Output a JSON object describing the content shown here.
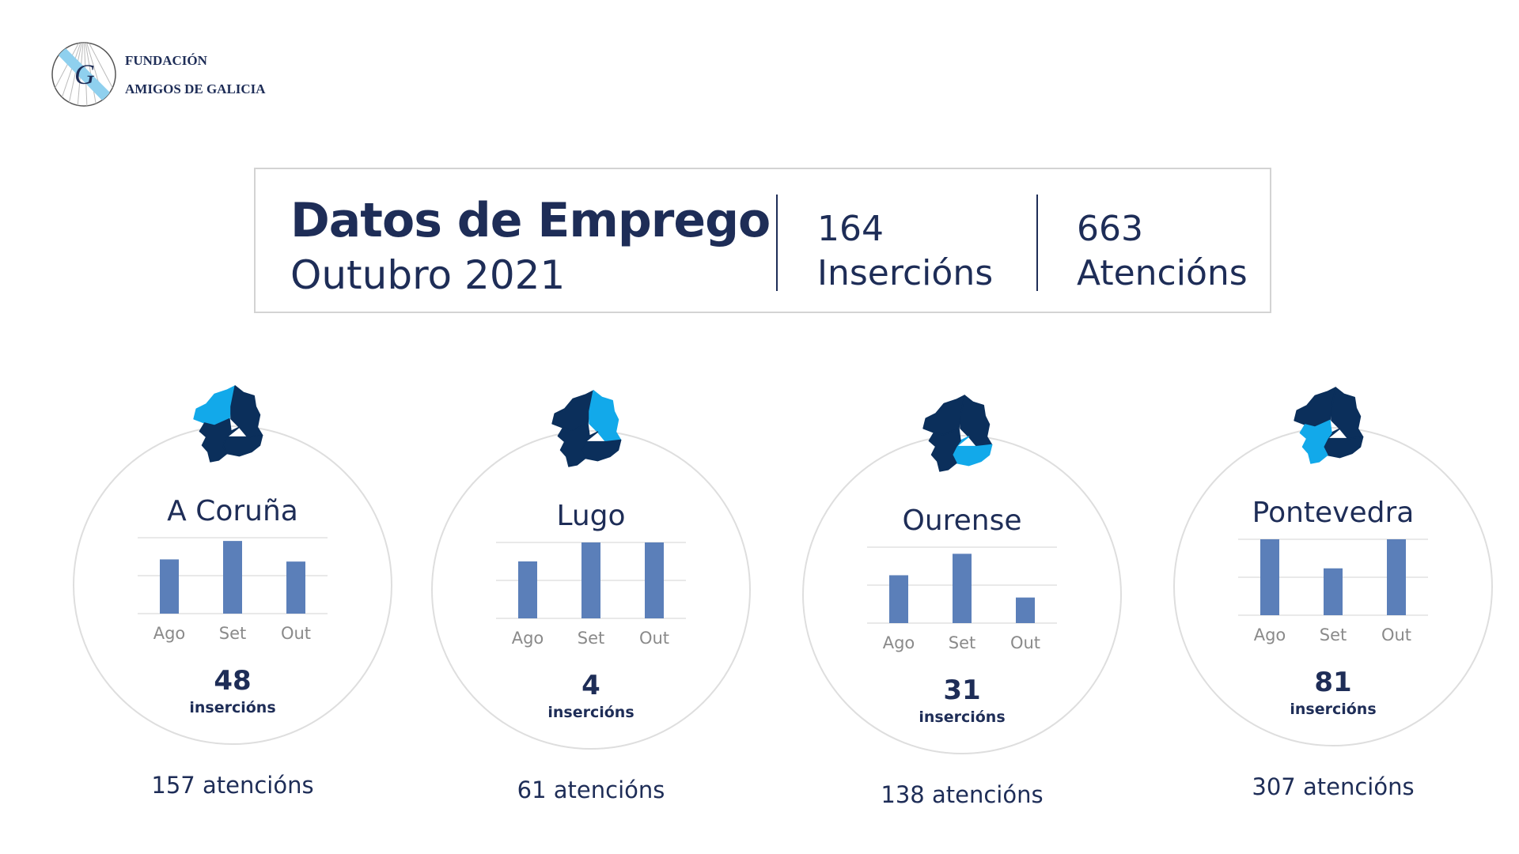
{
  "logo": {
    "line1": "FUNDACIÓN",
    "line2": "AMIGOS DE GALICIA",
    "letter": "G"
  },
  "header": {
    "title": "Datos de Emprego",
    "subtitle": "Outubro 2021",
    "insercions_value": "164",
    "insercions_label": "Insercións",
    "atencions_value": "663",
    "atencions_label": "Atencións"
  },
  "colors": {
    "text": "#1e2d57",
    "bar": "#5b7fb9",
    "map_dark": "#0b2f5b",
    "map_highlight": "#12a9ea",
    "grid": "#e2e2e2",
    "tick": "#8a8a8a"
  },
  "regions": [
    {
      "name": "A Coruña",
      "insercions": "48",
      "insercions_label": "insercións",
      "atencions": "157 atencións",
      "highlight": "coruna"
    },
    {
      "name": "Lugo",
      "insercions": "4",
      "insercions_label": "insercións",
      "atencions": "61 atencións",
      "highlight": "lugo"
    },
    {
      "name": "Ourense",
      "insercions": "31",
      "insercions_label": "insercións",
      "atencions": "138 atencións",
      "highlight": "ourense"
    },
    {
      "name": "Pontevedra",
      "insercions": "81",
      "insercions_label": "insercións",
      "atencions": "307 atencións",
      "highlight": "pontevedra"
    }
  ],
  "chart_data": [
    {
      "type": "bar",
      "title": "A Coruña",
      "categories": [
        "Ago",
        "Set",
        "Out"
      ],
      "values": [
        50,
        67,
        48
      ],
      "ylim": [
        0,
        70
      ],
      "grid": true
    },
    {
      "type": "bar",
      "title": "Lugo",
      "categories": [
        "Ago",
        "Set",
        "Out"
      ],
      "values": [
        3,
        4,
        4
      ],
      "ylim": [
        0,
        4
      ],
      "grid": true
    },
    {
      "type": "bar",
      "title": "Ourense",
      "categories": [
        "Ago",
        "Set",
        "Out"
      ],
      "values": [
        58,
        84,
        31
      ],
      "ylim": [
        0,
        92
      ],
      "grid": true
    },
    {
      "type": "bar",
      "title": "Pontevedra",
      "categories": [
        "Ago",
        "Set",
        "Out"
      ],
      "values": [
        81,
        50,
        81
      ],
      "ylim": [
        0,
        81
      ],
      "grid": true
    }
  ]
}
